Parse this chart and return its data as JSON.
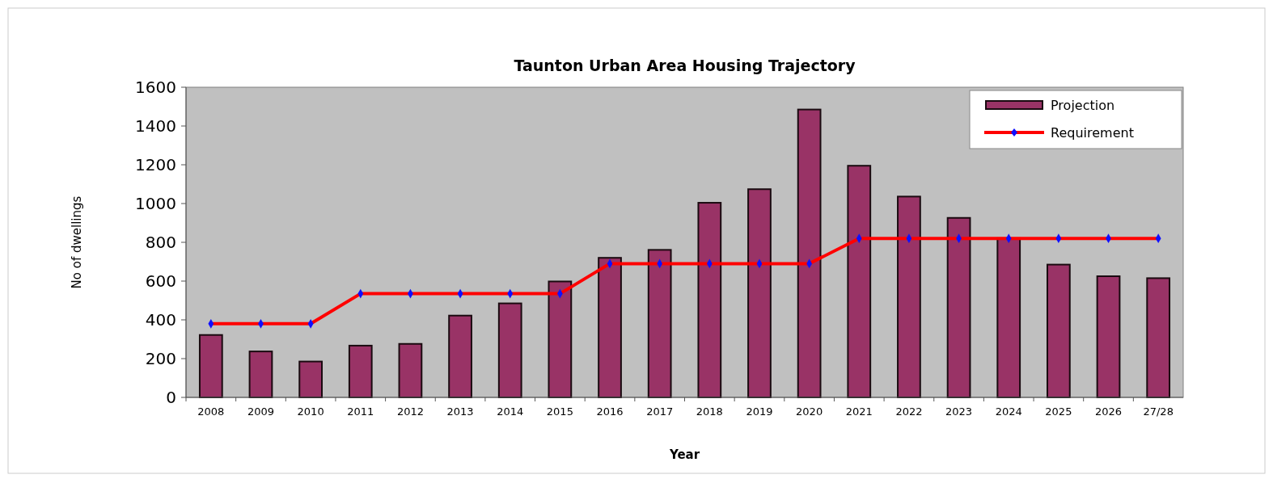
{
  "chart_data": {
    "type": "bar",
    "title": "Taunton Urban Area Housing Trajectory",
    "xlabel": "Year",
    "ylabel": "No of dwellings",
    "categories": [
      "2008",
      "2009",
      "2010",
      "2011",
      "2012",
      "2013",
      "2014",
      "2015",
      "2016",
      "2017",
      "2018",
      "2019",
      "2020",
      "2021",
      "2022",
      "2023",
      "2024",
      "2025",
      "2026",
      "27/28"
    ],
    "series": [
      {
        "name": "Projection",
        "color": "#993366",
        "values": [
          322,
          237,
          185,
          267,
          276,
          422,
          485,
          598,
          720,
          761,
          1004,
          1074,
          1485,
          1195,
          1036,
          926,
          821,
          685,
          625,
          615
        ]
      },
      {
        "name": "Requirement",
        "type": "line",
        "color": "#ff0000",
        "marker": "diamond",
        "values": [
          380,
          380,
          380,
          535,
          535,
          535,
          535,
          535,
          690,
          690,
          690,
          690,
          690,
          820,
          820,
          820,
          820,
          820,
          820,
          820
        ]
      }
    ],
    "ylim": [
      0,
      1600
    ],
    "yticks": [
      0,
      200,
      400,
      600,
      800,
      1000,
      1200,
      1400,
      1600
    ],
    "grid": false,
    "legend": "top right"
  }
}
